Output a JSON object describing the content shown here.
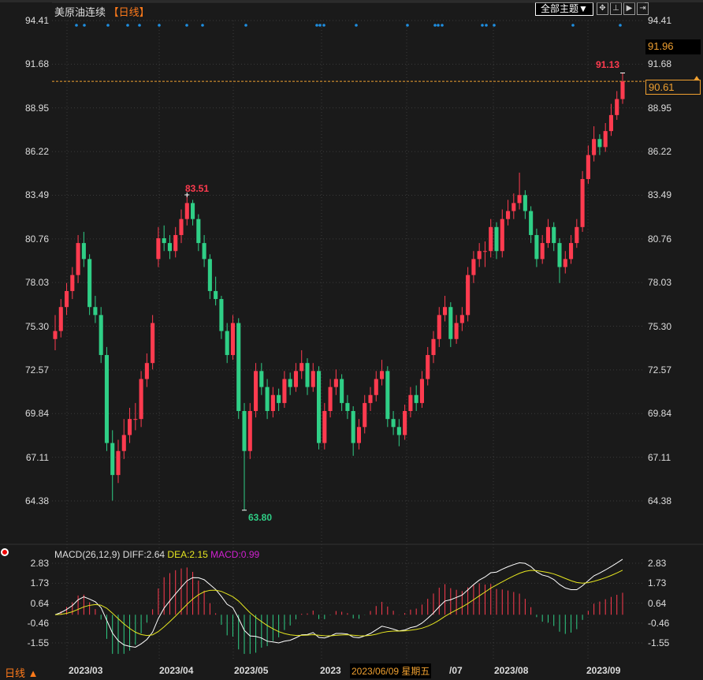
{
  "header": {
    "instrument": "美原油连续",
    "period": "【日线】",
    "theme_button": "全部主题▼",
    "tools": [
      "crosshair-icon",
      "zoom-range-icon",
      "play-back-icon",
      "play-forward-icon"
    ]
  },
  "colors": {
    "up": "#ff3b4f",
    "down": "#2fcf86",
    "diff": "#ffffff",
    "dea": "#e6e620",
    "macd_label": "#d020d0",
    "accent": "#ff7a1a",
    "background": "#1a1a1a",
    "marker": "#1e8ee0"
  },
  "price_axis": {
    "ticks": [
      "94.41",
      "91.68",
      "88.95",
      "86.22",
      "83.49",
      "80.76",
      "78.03",
      "75.30",
      "72.57",
      "69.84",
      "67.11",
      "64.38"
    ],
    "current_high_box": "91.96",
    "last_price_box": "90.61",
    "last_price": 90.61
  },
  "annotations": {
    "max_label": "83.51",
    "min_label": "63.80",
    "recent_high_label": "91.13"
  },
  "macd": {
    "legend": "MACD(26,12,9)",
    "diff": "DIFF:2.64",
    "dea": "DEA:2.15",
    "macd": "MACD:0.99",
    "ticks": [
      "2.83",
      "1.73",
      "0.64",
      "-0.46",
      "-1.55"
    ]
  },
  "x_axis": {
    "labels": [
      "2023/03",
      "2023/04",
      "2023/05",
      "2023",
      "/07",
      "2023/08",
      "2023/09"
    ],
    "crosshair_date": "2023/06/09 星期五",
    "period_selector": "日线 ▲"
  },
  "chart_data": {
    "type": "candlestick",
    "ylim": [
      64.38,
      94.41
    ],
    "grid": true,
    "candles_ohlc": [
      [
        74.5,
        76.0,
        73.8,
        75.0
      ],
      [
        75.0,
        77.0,
        74.6,
        76.5
      ],
      [
        76.5,
        78.0,
        76.0,
        77.5
      ],
      [
        77.5,
        79.0,
        77.0,
        78.5
      ],
      [
        78.5,
        81.0,
        78.0,
        80.5
      ],
      [
        80.5,
        81.2,
        79.0,
        79.5
      ],
      [
        79.5,
        79.8,
        76.0,
        76.5
      ],
      [
        76.5,
        77.2,
        75.5,
        76.0
      ],
      [
        76.0,
        76.5,
        73.0,
        73.5
      ],
      [
        73.5,
        74.0,
        67.5,
        68.0
      ],
      [
        68.0,
        68.8,
        64.4,
        66.0
      ],
      [
        66.0,
        68.2,
        65.5,
        67.5
      ],
      [
        67.5,
        69.5,
        67.0,
        68.5
      ],
      [
        68.5,
        70.2,
        68.0,
        69.5
      ],
      [
        69.5,
        70.5,
        68.8,
        69.5
      ],
      [
        69.5,
        72.5,
        69.0,
        72.0
      ],
      [
        72.0,
        73.6,
        71.5,
        73.0
      ],
      [
        73.0,
        76.0,
        72.6,
        75.5
      ],
      [
        79.5,
        81.5,
        79.0,
        80.8
      ],
      [
        80.8,
        81.6,
        80.0,
        80.5
      ],
      [
        80.5,
        81.0,
        79.5,
        80.0
      ],
      [
        80.0,
        81.5,
        79.6,
        81.0
      ],
      [
        81.0,
        82.6,
        80.5,
        82.0
      ],
      [
        82.0,
        83.51,
        81.6,
        83.0
      ],
      [
        83.0,
        83.2,
        81.6,
        82.0
      ],
      [
        82.0,
        82.3,
        80.0,
        80.5
      ],
      [
        80.5,
        81.0,
        79.0,
        79.5
      ],
      [
        79.5,
        79.8,
        77.0,
        77.5
      ],
      [
        77.5,
        78.4,
        76.6,
        77.0
      ],
      [
        77.0,
        77.2,
        74.5,
        75.0
      ],
      [
        75.0,
        75.5,
        73.0,
        73.5
      ],
      [
        73.5,
        76.0,
        73.2,
        75.5
      ],
      [
        75.5,
        75.8,
        69.5,
        70.0
      ],
      [
        70.0,
        70.5,
        63.8,
        67.5
      ],
      [
        67.5,
        70.5,
        67.0,
        70.0
      ],
      [
        70.0,
        73.0,
        69.6,
        72.5
      ],
      [
        72.5,
        73.0,
        71.0,
        71.5
      ],
      [
        71.5,
        72.0,
        69.5,
        70.0
      ],
      [
        70.0,
        71.5,
        69.6,
        71.0
      ],
      [
        71.0,
        71.4,
        70.0,
        70.5
      ],
      [
        70.5,
        72.5,
        70.2,
        72.0
      ],
      [
        72.0,
        72.4,
        71.0,
        71.5
      ],
      [
        71.5,
        73.0,
        71.2,
        72.5
      ],
      [
        72.5,
        73.8,
        72.0,
        73.0
      ],
      [
        73.0,
        73.3,
        71.0,
        71.5
      ],
      [
        71.5,
        73.0,
        71.2,
        72.5
      ],
      [
        72.5,
        72.8,
        67.6,
        68.0
      ],
      [
        68.0,
        70.5,
        67.6,
        70.0
      ],
      [
        70.0,
        72.0,
        69.6,
        71.5
      ],
      [
        71.5,
        72.6,
        71.0,
        72.0
      ],
      [
        72.0,
        72.3,
        70.0,
        70.5
      ],
      [
        70.5,
        71.0,
        69.5,
        70.0
      ],
      [
        70.0,
        70.3,
        67.2,
        68.0
      ],
      [
        68.0,
        69.5,
        67.6,
        69.0
      ],
      [
        69.0,
        71.0,
        68.6,
        70.5
      ],
      [
        70.5,
        71.5,
        70.0,
        71.0
      ],
      [
        71.0,
        72.5,
        70.6,
        72.0
      ],
      [
        72.0,
        73.2,
        71.6,
        72.5
      ],
      [
        72.5,
        72.8,
        69.0,
        69.5
      ],
      [
        69.5,
        70.0,
        68.5,
        69.0
      ],
      [
        69.0,
        69.5,
        67.8,
        68.5
      ],
      [
        68.5,
        70.4,
        68.2,
        70.0
      ],
      [
        70.0,
        71.5,
        69.6,
        71.0
      ],
      [
        71.0,
        71.6,
        70.0,
        70.5
      ],
      [
        70.5,
        72.5,
        70.2,
        72.0
      ],
      [
        72.0,
        74.0,
        71.6,
        73.5
      ],
      [
        73.5,
        75.0,
        73.0,
        74.5
      ],
      [
        74.5,
        76.5,
        74.0,
        76.0
      ],
      [
        76.0,
        77.2,
        75.6,
        76.5
      ],
      [
        76.5,
        76.8,
        74.0,
        74.5
      ],
      [
        74.5,
        76.0,
        74.2,
        75.5
      ],
      [
        75.5,
        76.5,
        75.0,
        76.0
      ],
      [
        76.0,
        79.0,
        75.6,
        78.5
      ],
      [
        78.5,
        80.0,
        78.0,
        79.5
      ],
      [
        79.5,
        80.5,
        79.0,
        80.0
      ],
      [
        80.0,
        80.6,
        79.0,
        80.0
      ],
      [
        80.0,
        82.0,
        79.6,
        81.5
      ],
      [
        81.5,
        81.8,
        79.5,
        80.0
      ],
      [
        80.0,
        82.6,
        79.6,
        82.0
      ],
      [
        82.0,
        83.2,
        81.6,
        82.5
      ],
      [
        82.5,
        83.6,
        82.0,
        83.0
      ],
      [
        83.0,
        84.9,
        82.6,
        83.5
      ],
      [
        83.5,
        83.8,
        82.0,
        82.5
      ],
      [
        82.5,
        82.8,
        80.5,
        81.0
      ],
      [
        81.0,
        81.4,
        79.0,
        79.5
      ],
      [
        79.5,
        81.0,
        79.2,
        80.5
      ],
      [
        80.5,
        82.0,
        80.2,
        81.5
      ],
      [
        81.5,
        81.8,
        80.0,
        80.5
      ],
      [
        80.5,
        80.8,
        78.0,
        79.0
      ],
      [
        79.0,
        80.0,
        78.6,
        79.5
      ],
      [
        79.5,
        81.0,
        79.2,
        80.5
      ],
      [
        80.5,
        82.0,
        80.2,
        81.5
      ],
      [
        81.5,
        85.0,
        81.2,
        84.5
      ],
      [
        84.5,
        86.6,
        84.2,
        86.0
      ],
      [
        86.0,
        87.8,
        85.6,
        87.0
      ],
      [
        87.0,
        87.3,
        86.0,
        86.5
      ],
      [
        86.5,
        88.0,
        86.2,
        87.5
      ],
      [
        87.5,
        89.2,
        87.2,
        88.5
      ],
      [
        88.5,
        90.0,
        88.2,
        89.5
      ],
      [
        89.5,
        91.13,
        89.2,
        90.6
      ]
    ]
  }
}
